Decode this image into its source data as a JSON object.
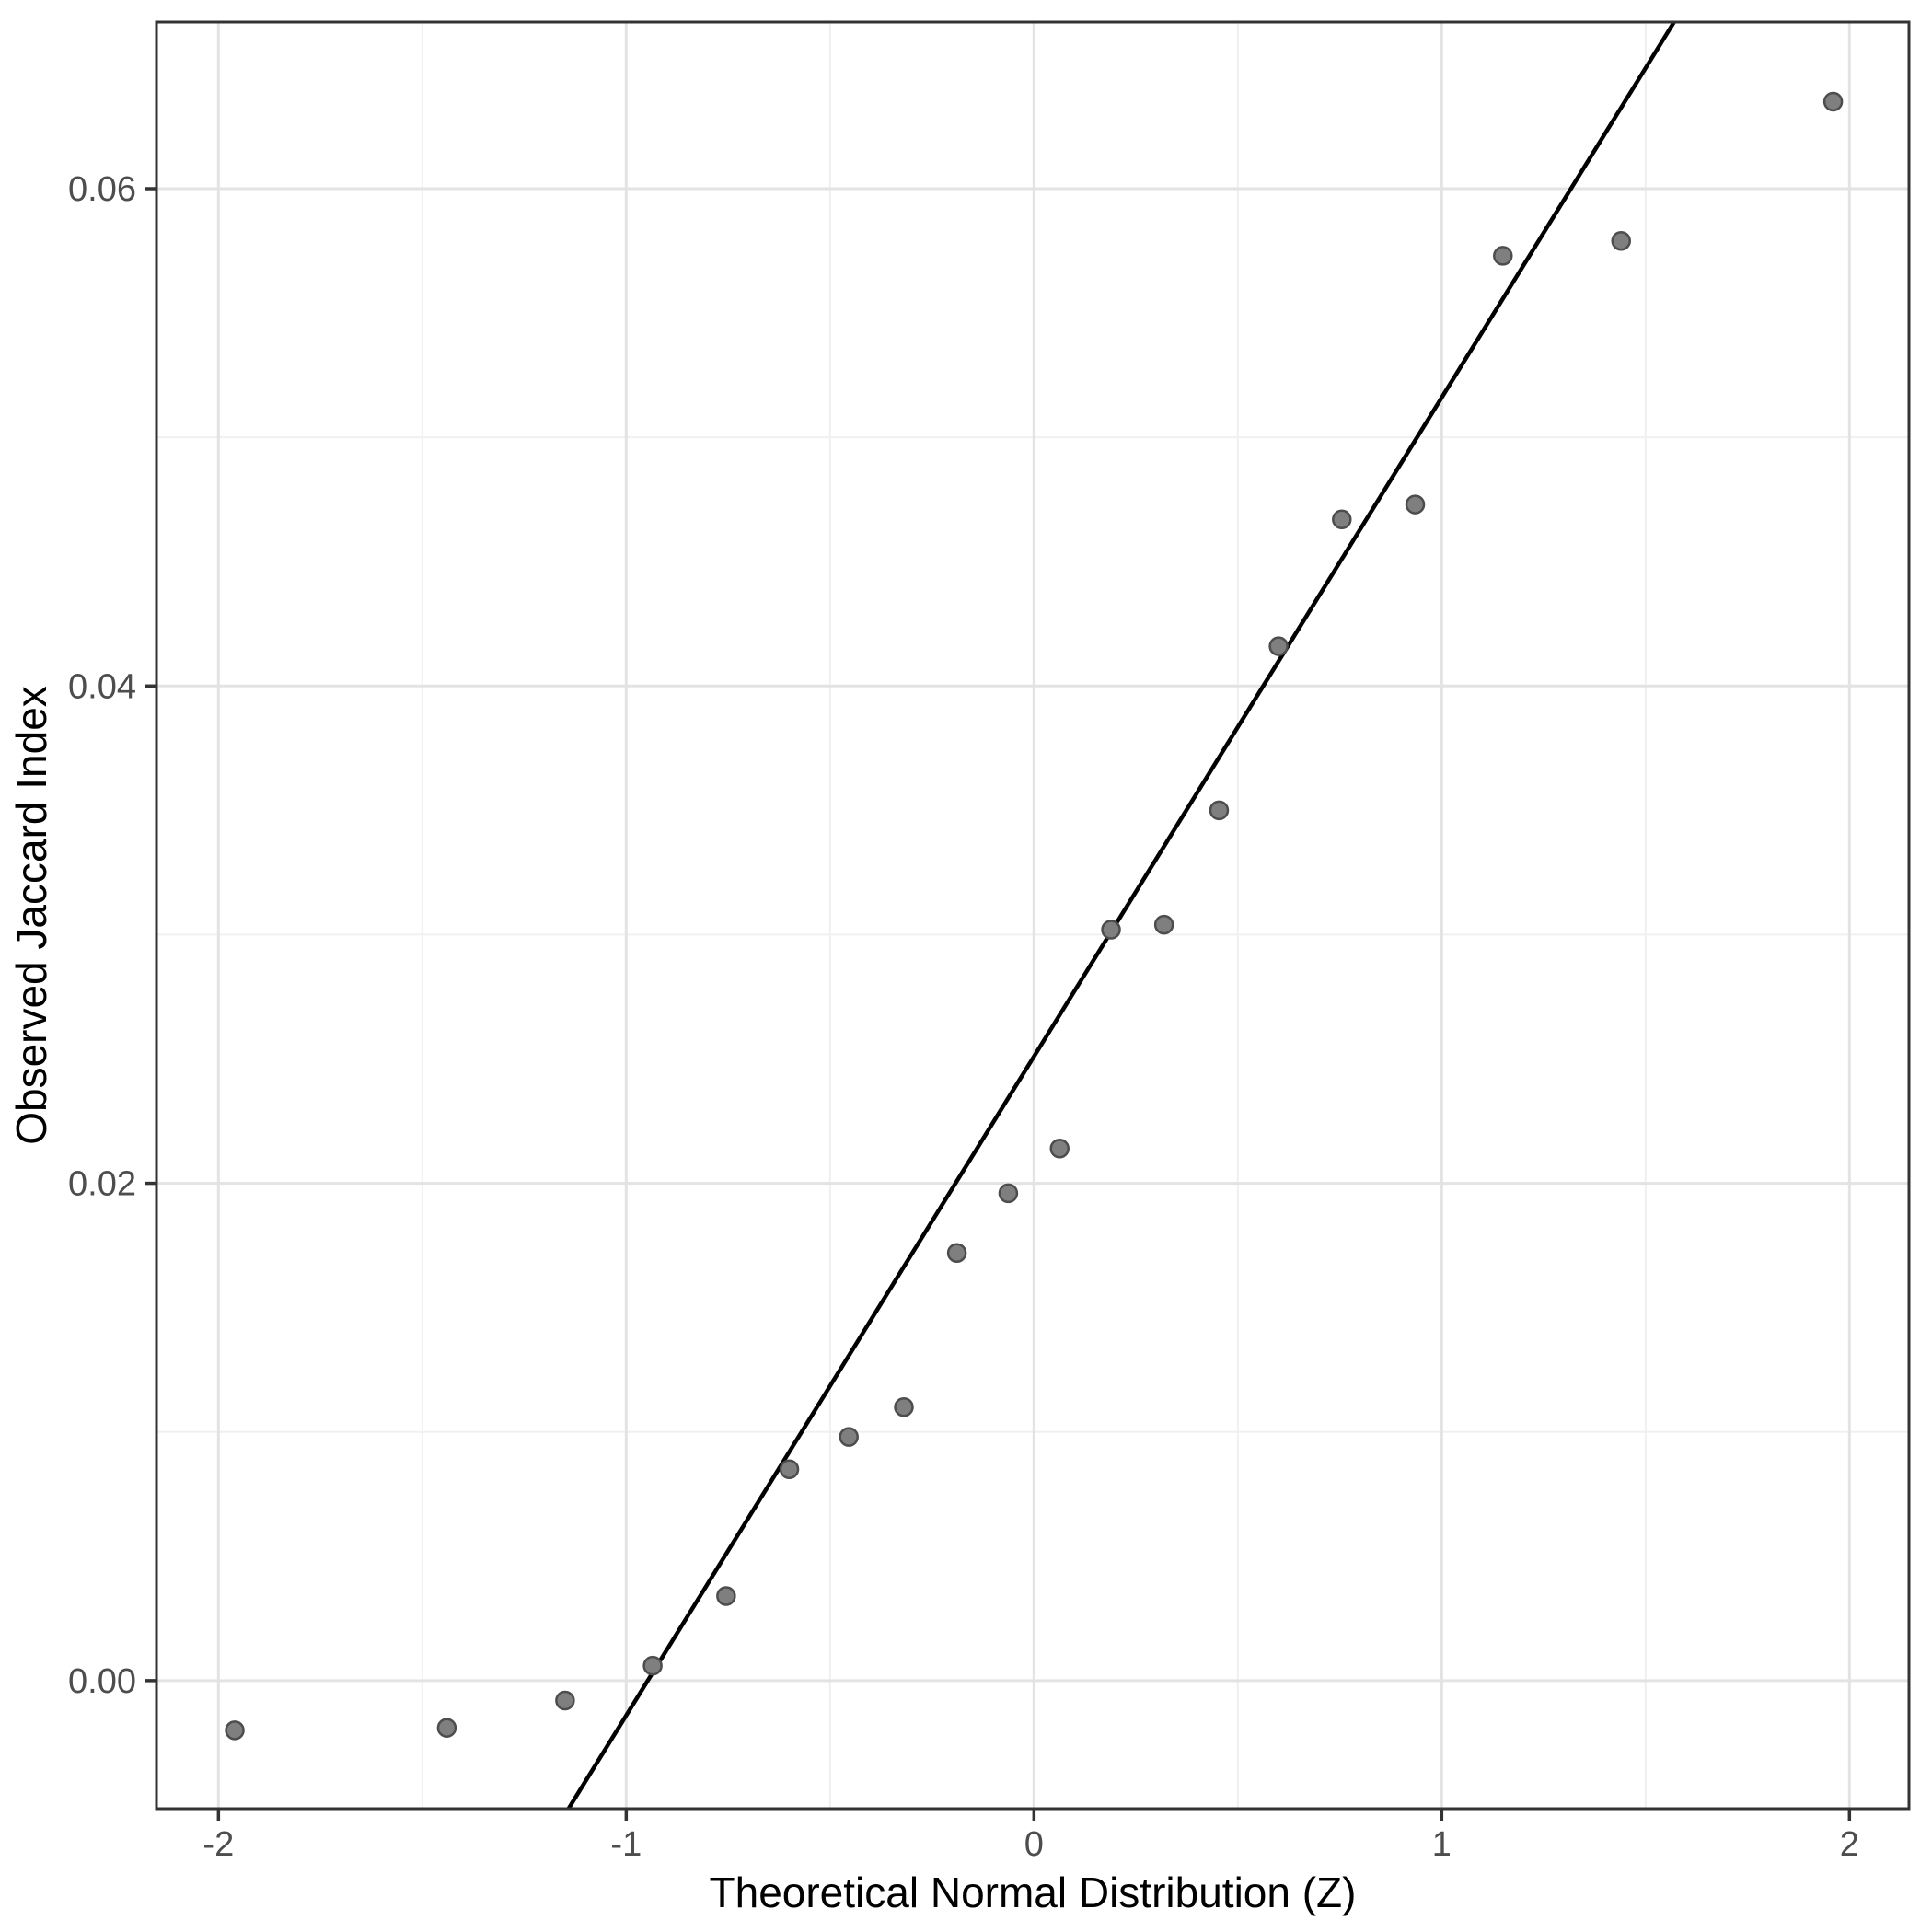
{
  "chart_data": {
    "type": "scatter",
    "subtype": "qq-plot",
    "title": "",
    "xlabel": "Theoretical Normal Distribution (Z)",
    "ylabel": "Observed Jaccard Index",
    "x_ticks": [
      -2,
      -1,
      0,
      1,
      2
    ],
    "x_tick_labels": [
      "-2",
      "-1",
      "0",
      "1",
      "2"
    ],
    "y_ticks": [
      0.0,
      0.02,
      0.04,
      0.06
    ],
    "y_tick_labels": [
      "0.00",
      "0.02",
      "0.04",
      "0.06"
    ],
    "x_minor_gridlines": [
      -1.5,
      -0.5,
      0.5,
      1.5
    ],
    "y_minor_gridlines": [
      0.01,
      0.03,
      0.05
    ],
    "xlim": [
      -2.152,
      2.146
    ],
    "ylim": [
      -0.00515,
      0.0667
    ],
    "grid": "major-and-minor",
    "legend_position": "none",
    "points": [
      {
        "x": -1.96,
        "y": -0.002
      },
      {
        "x": -1.44,
        "y": -0.0019
      },
      {
        "x": -1.15,
        "y": -0.0008
      },
      {
        "x": -0.935,
        "y": 0.0006
      },
      {
        "x": -0.755,
        "y": 0.0034
      },
      {
        "x": -0.6,
        "y": 0.0085
      },
      {
        "x": -0.454,
        "y": 0.0098
      },
      {
        "x": -0.319,
        "y": 0.011
      },
      {
        "x": -0.189,
        "y": 0.0172
      },
      {
        "x": -0.063,
        "y": 0.0196
      },
      {
        "x": 0.063,
        "y": 0.0214
      },
      {
        "x": 0.189,
        "y": 0.0302
      },
      {
        "x": 0.319,
        "y": 0.0304
      },
      {
        "x": 0.454,
        "y": 0.035
      },
      {
        "x": 0.6,
        "y": 0.0416
      },
      {
        "x": 0.755,
        "y": 0.0467
      },
      {
        "x": 0.935,
        "y": 0.0473
      },
      {
        "x": 1.15,
        "y": 0.0573
      },
      {
        "x": 1.44,
        "y": 0.0579
      },
      {
        "x": 1.96,
        "y": 0.0635
      }
    ],
    "reference_line": {
      "kind": "qqline",
      "intercept": 0.0251,
      "slope": 0.0265
    },
    "colors": {
      "background": "#ffffff",
      "panel_background": "#ffffff",
      "panel_border": "#333333",
      "grid_major": "#e3e3e3",
      "grid_minor": "#f0f0f0",
      "point_fill": "#7f7f7f",
      "point_stroke": "#4d4d4d",
      "reference_line_color": "#000000",
      "axis_tick_text": "#4d4d4d",
      "axis_title_text": "#000000",
      "tick_mark": "#333333"
    }
  }
}
